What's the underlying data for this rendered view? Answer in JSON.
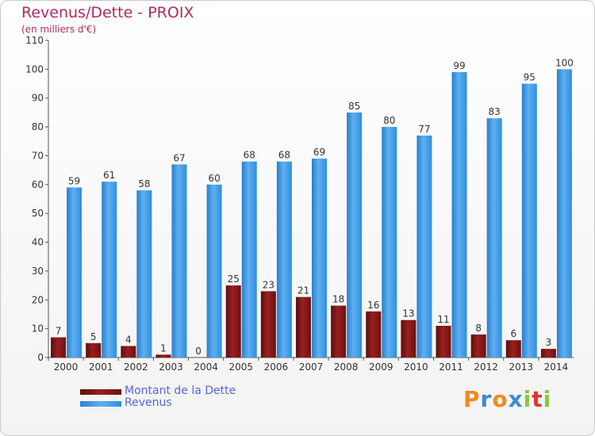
{
  "title": "Revenus/Dette - PROIX",
  "subtitle": "(en milliers d'€)",
  "logo": "Proxiti",
  "colors": {
    "dette": "#7a1212",
    "revenus": "#2f8ee0",
    "title": "#b02a5a",
    "legend_text": "#5566dd"
  },
  "chart_data": {
    "type": "bar",
    "categories": [
      "2000",
      "2001",
      "2002",
      "2003",
      "2004",
      "2005",
      "2006",
      "2007",
      "2008",
      "2009",
      "2010",
      "2011",
      "2012",
      "2013",
      "2014"
    ],
    "series": [
      {
        "name": "Montant de la Dette",
        "values": [
          7,
          5,
          4,
          1,
          0,
          25,
          23,
          21,
          18,
          16,
          13,
          11,
          8,
          6,
          3
        ]
      },
      {
        "name": "Revenus",
        "values": [
          59,
          61,
          58,
          67,
          60,
          68,
          68,
          69,
          85,
          80,
          77,
          99,
          83,
          95,
          100
        ]
      }
    ],
    "ylim": [
      0,
      110
    ],
    "yticks": [
      0,
      10,
      20,
      30,
      40,
      50,
      60,
      70,
      80,
      90,
      100,
      110
    ],
    "grid": false,
    "legend_position": "bottom-left"
  },
  "legend": [
    {
      "label": "Montant de la Dette",
      "icon": "dark-red-bar-swatch"
    },
    {
      "label": "Revenus",
      "icon": "blue-bar-swatch"
    }
  ]
}
